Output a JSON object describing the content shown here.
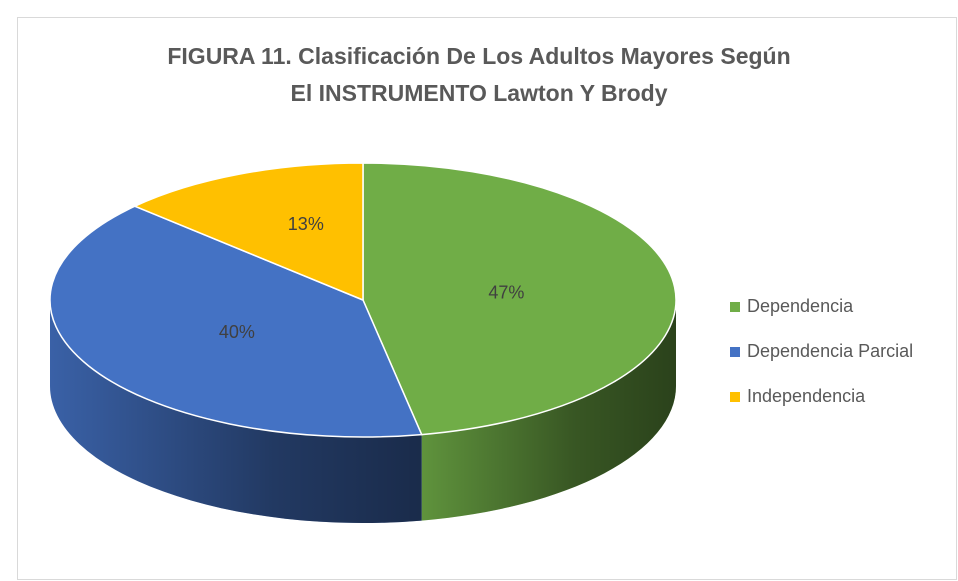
{
  "chart_data": {
    "type": "pie",
    "title": [
      "FIGURA 11. Clasificación De Los Adultos Mayores Según",
      "El INSTRUMENTO Lawton Y Brody"
    ],
    "categories": [
      "Dependencia",
      "Dependencia Parcial",
      "Independencia"
    ],
    "values": [
      47,
      40,
      13
    ],
    "value_labels": [
      "47%",
      "40%",
      "13%"
    ],
    "colors": [
      "#70ad47",
      "#4472c4",
      "#ffc000"
    ],
    "legend": "right"
  }
}
